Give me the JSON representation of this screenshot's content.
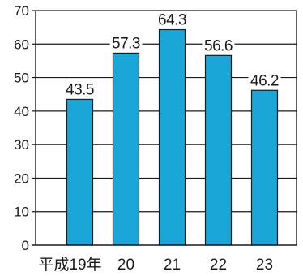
{
  "chart_data": {
    "type": "bar",
    "categories": [
      "平成19年",
      "20",
      "21",
      "22",
      "23"
    ],
    "values": [
      43.5,
      57.3,
      64.3,
      56.6,
      46.2
    ],
    "data_labels": [
      "43.5",
      "57.3",
      "64.3",
      "56.6",
      "46.2"
    ],
    "ylim": [
      0,
      70
    ],
    "yticks": [
      0,
      10,
      20,
      30,
      40,
      50,
      60,
      70
    ],
    "ytick_labels": [
      "0",
      "10",
      "20",
      "30",
      "40",
      "50",
      "60",
      "70"
    ],
    "grid": true,
    "legend": "none",
    "colors": {
      "bar_fill": "#1aa6d6",
      "bar_edge": "#1a1a1a",
      "grid": "#1a1a1a",
      "axis": "#1a1a1a",
      "label_bg": "#ffffff"
    }
  }
}
